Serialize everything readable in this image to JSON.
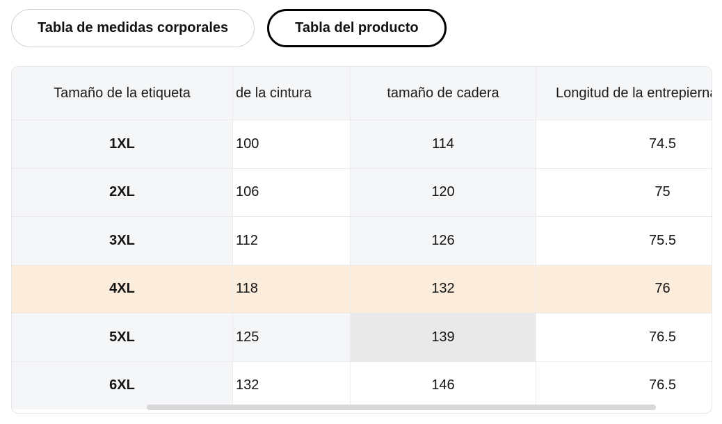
{
  "tabs": [
    {
      "label": "Tabla de medidas corporales",
      "selected": false
    },
    {
      "label": "Tabla del producto",
      "selected": true
    }
  ],
  "table": {
    "columns": [
      {
        "label": "Tamaño de la etiqueta"
      },
      {
        "label": "de la cintura"
      },
      {
        "label": "tamaño de cadera"
      },
      {
        "label": "Longitud de la entrepierna"
      }
    ],
    "rows": [
      {
        "size": "1XL",
        "values": [
          "100",
          "114",
          "74.5"
        ]
      },
      {
        "size": "2XL",
        "values": [
          "106",
          "120",
          "75"
        ]
      },
      {
        "size": "3XL",
        "values": [
          "112",
          "126",
          "75.5"
        ]
      },
      {
        "size": "4XL",
        "values": [
          "118",
          "132",
          "76"
        ],
        "highlighted_row": true
      },
      {
        "size": "5XL",
        "values": [
          "125",
          "139",
          "76.5"
        ],
        "selected_cell_value": "139"
      },
      {
        "size": "6XL",
        "values": [
          "132",
          "146",
          "76.5"
        ]
      }
    ]
  },
  "colors": {
    "highlight_row": "#fcecdb",
    "selected_cell": "#e9e9ea",
    "column_trail_highlight": "#f5f6f7",
    "header_bg": "#f5f6f7",
    "selected_tab_border": "#000000",
    "scrollbar_thumb": "#d8d8da"
  }
}
